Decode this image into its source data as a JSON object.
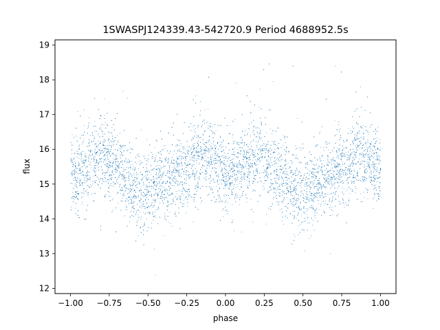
{
  "chart_data": {
    "type": "scatter",
    "title": "1SWASPJ124339.43-542720.9 Period 4688952.5s",
    "xlabel": "phase",
    "ylabel": "flux",
    "xlim": [
      -1.1,
      1.1
    ],
    "ylim": [
      11.85,
      19.15
    ],
    "xticks": [
      -1.0,
      -0.75,
      -0.5,
      -0.25,
      0.0,
      0.25,
      0.5,
      0.75,
      1.0
    ],
    "xtick_labels": [
      "−1.00",
      "−0.75",
      "−0.50",
      "−0.25",
      "0.00",
      "0.25",
      "0.50",
      "0.75",
      "1.00"
    ],
    "yticks": [
      12,
      13,
      14,
      15,
      16,
      17,
      18,
      19
    ],
    "ytick_labels": [
      "12",
      "13",
      "14",
      "15",
      "16",
      "17",
      "18",
      "19"
    ],
    "grid": false,
    "legend": "none",
    "point_color": "#1f77b4",
    "phase_range": [
      -1.0,
      1.0
    ],
    "mean_flux_profile": {
      "phase": [
        0.0,
        0.05,
        0.1,
        0.15,
        0.2,
        0.25,
        0.3,
        0.35,
        0.4,
        0.45,
        0.5,
        0.55,
        0.6,
        0.65,
        0.7,
        0.75,
        0.8,
        0.85,
        0.9,
        0.95,
        1.0
      ],
      "flux": [
        15.35,
        15.3,
        15.45,
        15.7,
        15.85,
        15.75,
        15.5,
        15.25,
        15.0,
        14.8,
        14.8,
        14.95,
        15.1,
        15.2,
        15.3,
        15.45,
        15.7,
        15.8,
        15.75,
        15.55,
        15.35
      ]
    },
    "flux_spread": 0.55,
    "n_points": 9000
  }
}
